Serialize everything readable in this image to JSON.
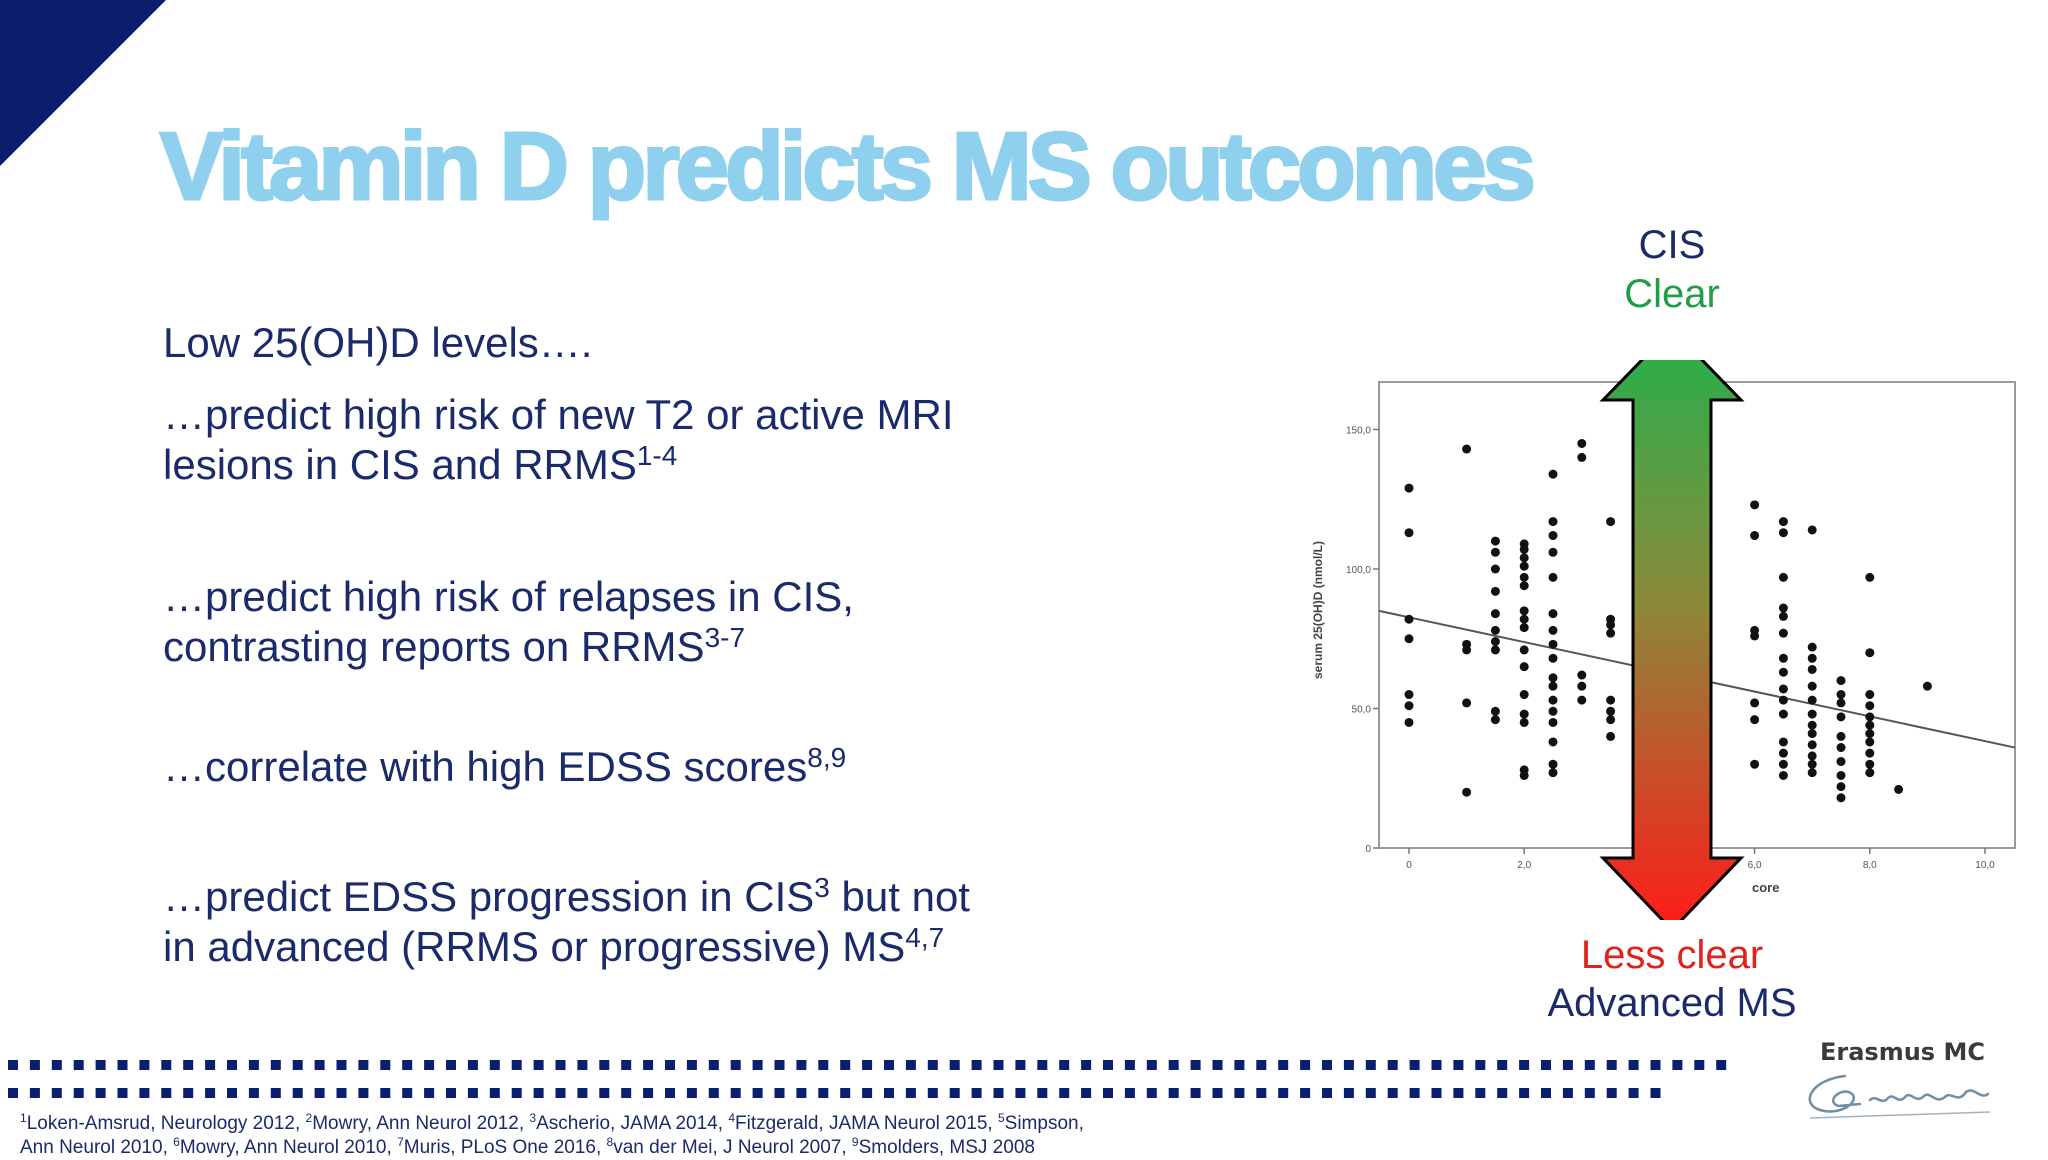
{
  "title": "Vitamin D predicts MS outcomes",
  "bullets": [
    {
      "lines": [
        {
          "text": "Low 25(OH)D levels….",
          "sup": ""
        }
      ]
    },
    {
      "lines": [
        {
          "text": "…predict high risk of new T2 or active MRI",
          "sup": ""
        },
        {
          "text": "lesions in CIS and RRMS",
          "sup": "1-4"
        }
      ]
    },
    {
      "lines": [
        {
          "text": "…predict high risk of relapses in CIS,",
          "sup": ""
        },
        {
          "text": "contrasting reports on RRMS",
          "sup": "3-7"
        }
      ]
    },
    {
      "lines": [
        {
          "text": "…correlate with high EDSS scores",
          "sup": "8,9"
        }
      ]
    },
    {
      "lines": [
        {
          "text": "…predict EDSS progression in CIS",
          "sup": "3",
          "tail": " but not"
        },
        {
          "text": "in advanced (RRMS or progressive) MS",
          "sup": "4,7"
        }
      ]
    }
  ],
  "arrow": {
    "top_label": "CIS",
    "top_status": "Clear",
    "bottom_status": "Less clear",
    "bottom_label": "Advanced MS",
    "colors": {
      "top": "#22b14c",
      "bottom": "#ff1a1a",
      "status_top": "#1e9e46",
      "status_bottom": "#e0211c",
      "label": "#1b2a6b"
    }
  },
  "chart_data": {
    "type": "scatter",
    "ylabel": "serum 25(OH)D (nmol/L)",
    "xlabel_visible": "core",
    "x_ticks": [
      "0",
      "2,0",
      "6,0",
      "8,0",
      "10,0"
    ],
    "y_ticks": [
      "0",
      "50,0",
      "100,0",
      "150,0"
    ],
    "xlim": [
      0,
      10.5
    ],
    "ylim": [
      0,
      165
    ],
    "trend_line": {
      "x": [
        -0.5,
        10.5
      ],
      "y": [
        85,
        36
      ]
    },
    "points": [
      [
        0,
        129
      ],
      [
        0,
        113
      ],
      [
        0,
        82
      ],
      [
        0,
        75
      ],
      [
        0,
        55
      ],
      [
        0,
        51
      ],
      [
        0,
        45
      ],
      [
        1,
        143
      ],
      [
        1,
        73
      ],
      [
        1,
        71
      ],
      [
        1,
        52
      ],
      [
        1,
        20
      ],
      [
        1.5,
        110
      ],
      [
        1.5,
        106
      ],
      [
        1.5,
        100
      ],
      [
        1.5,
        92
      ],
      [
        1.5,
        84
      ],
      [
        1.5,
        78
      ],
      [
        1.5,
        74
      ],
      [
        1.5,
        71
      ],
      [
        1.5,
        46
      ],
      [
        1.5,
        49
      ],
      [
        2,
        109
      ],
      [
        2,
        107
      ],
      [
        2,
        104
      ],
      [
        2,
        101
      ],
      [
        2,
        97
      ],
      [
        2,
        94
      ],
      [
        2,
        85
      ],
      [
        2,
        82
      ],
      [
        2,
        79
      ],
      [
        2,
        71
      ],
      [
        2,
        65
      ],
      [
        2,
        55
      ],
      [
        2,
        48
      ],
      [
        2,
        45
      ],
      [
        2,
        26
      ],
      [
        2,
        28
      ],
      [
        2.5,
        106
      ],
      [
        2.5,
        97
      ],
      [
        2.5,
        84
      ],
      [
        2.5,
        78
      ],
      [
        2.5,
        73
      ],
      [
        2.5,
        68
      ],
      [
        2.5,
        61
      ],
      [
        2.5,
        58
      ],
      [
        2.5,
        53
      ],
      [
        2.5,
        49
      ],
      [
        2.5,
        45
      ],
      [
        2.5,
        38
      ],
      [
        2.5,
        30
      ],
      [
        2.5,
        27
      ],
      [
        2.5,
        134
      ],
      [
        2.5,
        117
      ],
      [
        2.5,
        112
      ],
      [
        3,
        145
      ],
      [
        3,
        140
      ],
      [
        3,
        62
      ],
      [
        3,
        58
      ],
      [
        3,
        53
      ],
      [
        3.5,
        117
      ],
      [
        3.5,
        82
      ],
      [
        3.5,
        80
      ],
      [
        3.5,
        77
      ],
      [
        3.5,
        53
      ],
      [
        3.5,
        49
      ],
      [
        3.5,
        46
      ],
      [
        3.5,
        40
      ],
      [
        6,
        123
      ],
      [
        6,
        112
      ],
      [
        6,
        78
      ],
      [
        6,
        76
      ],
      [
        6,
        52
      ],
      [
        6,
        46
      ],
      [
        6,
        30
      ],
      [
        6.5,
        117
      ],
      [
        6.5,
        113
      ],
      [
        6.5,
        97
      ],
      [
        6.5,
        86
      ],
      [
        6.5,
        83
      ],
      [
        6.5,
        77
      ],
      [
        6.5,
        68
      ],
      [
        6.5,
        63
      ],
      [
        6.5,
        57
      ],
      [
        6.5,
        53
      ],
      [
        6.5,
        48
      ],
      [
        6.5,
        38
      ],
      [
        6.5,
        34
      ],
      [
        6.5,
        30
      ],
      [
        6.5,
        26
      ],
      [
        7,
        114
      ],
      [
        7,
        72
      ],
      [
        7,
        68
      ],
      [
        7,
        64
      ],
      [
        7,
        58
      ],
      [
        7,
        53
      ],
      [
        7,
        48
      ],
      [
        7,
        44
      ],
      [
        7,
        41
      ],
      [
        7,
        37
      ],
      [
        7,
        33
      ],
      [
        7,
        30
      ],
      [
        7,
        27
      ],
      [
        7.5,
        60
      ],
      [
        7.5,
        55
      ],
      [
        7.5,
        52
      ],
      [
        7.5,
        47
      ],
      [
        7.5,
        40
      ],
      [
        7.5,
        36
      ],
      [
        7.5,
        31
      ],
      [
        7.5,
        26
      ],
      [
        7.5,
        22
      ],
      [
        7.5,
        18
      ],
      [
        8,
        97
      ],
      [
        8,
        70
      ],
      [
        8,
        55
      ],
      [
        8,
        51
      ],
      [
        8,
        47
      ],
      [
        8,
        44
      ],
      [
        8,
        41
      ],
      [
        8,
        38
      ],
      [
        8,
        34
      ],
      [
        8,
        30
      ],
      [
        8,
        27
      ],
      [
        8.5,
        21
      ],
      [
        9,
        58
      ]
    ]
  },
  "logo": {
    "name": "Erasmus MC",
    "signature": "Zafung"
  },
  "references": {
    "line1": [
      {
        "sup": "1",
        "text": "Loken-Amsrud, Neurology 2012, "
      },
      {
        "sup": "2",
        "text": "Mowry, Ann Neurol 2012, "
      },
      {
        "sup": "3",
        "text": "Ascherio, JAMA 2014, "
      },
      {
        "sup": "4",
        "text": "Fitzgerald, JAMA Neurol 2015, "
      },
      {
        "sup": "5",
        "text": "Simpson,"
      }
    ],
    "line2": [
      {
        "sup": "",
        "text": "Ann Neurol 2010, "
      },
      {
        "sup": "6",
        "text": "Mowry, Ann Neurol 2010, "
      },
      {
        "sup": "7",
        "text": "Muris, PLoS One 2016, "
      },
      {
        "sup": "8",
        "text": "van der Mei, J Neurol 2007, "
      },
      {
        "sup": "9",
        "text": "Smolders, MSJ 2008"
      }
    ]
  },
  "colors": {
    "title": "#8ed0ee",
    "navy": "#0b1f6e",
    "text": "#1b2a6b"
  }
}
